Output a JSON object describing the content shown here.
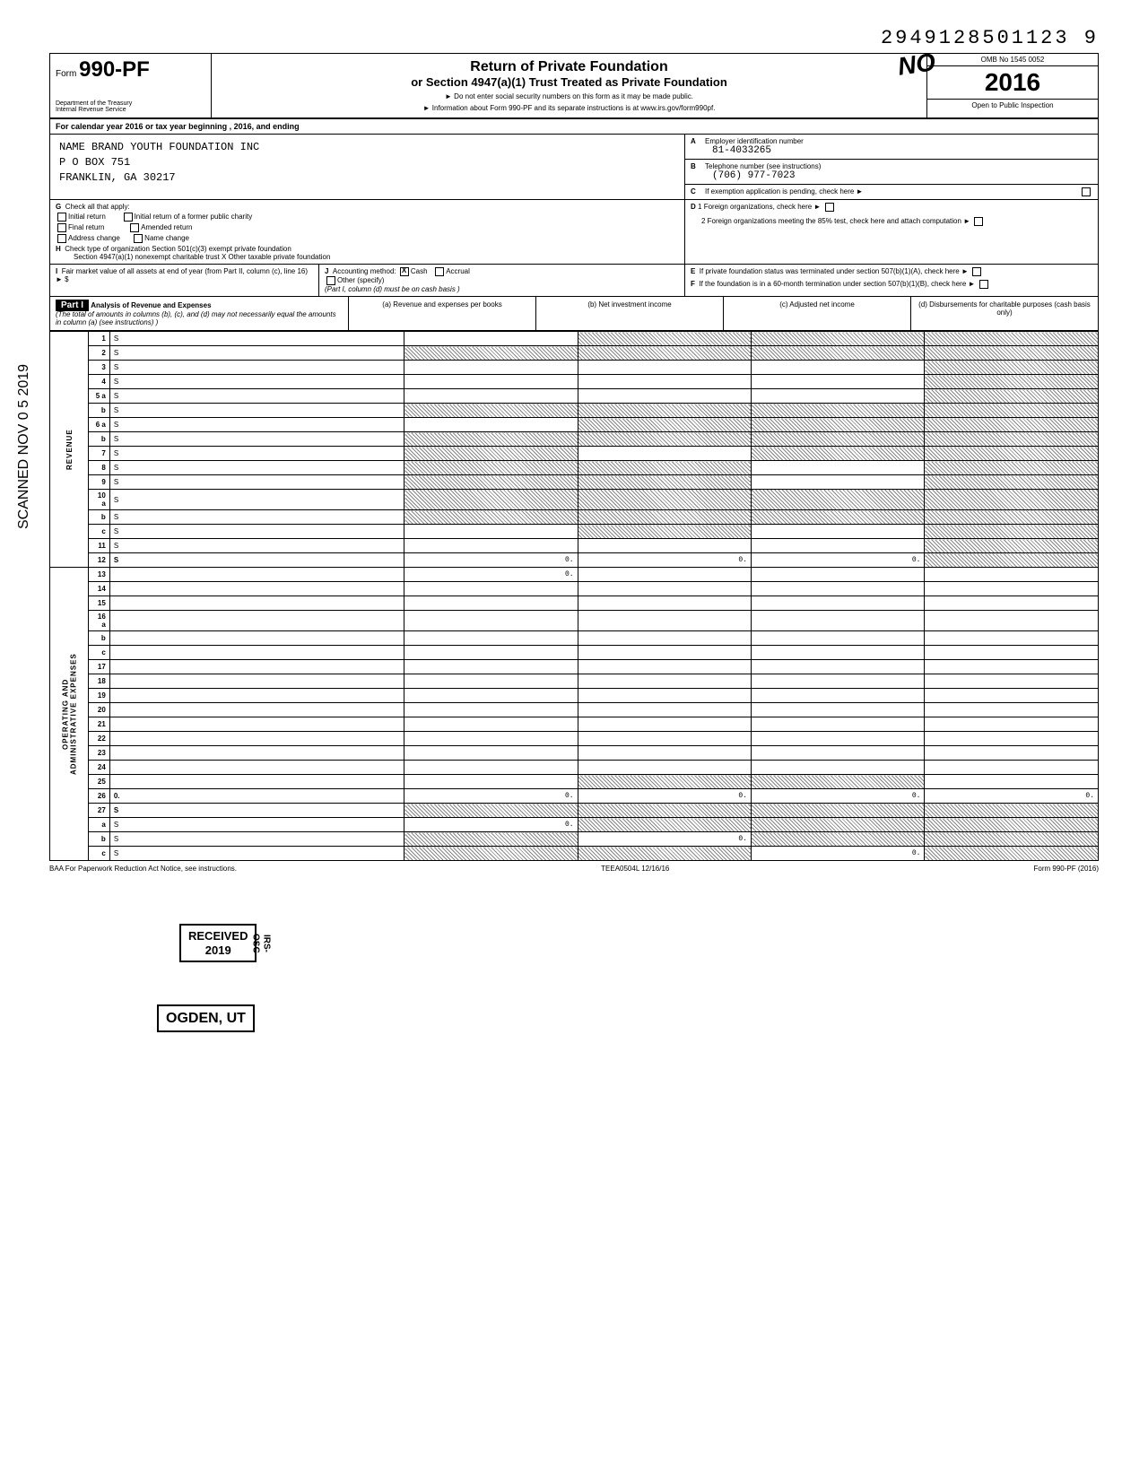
{
  "top_number": "2949128501123  9",
  "form": {
    "prefix": "Form",
    "number": "990-PF",
    "dept1": "Department of the Treasury",
    "dept2": "Internal Revenue Service"
  },
  "header": {
    "title": "Return of Private Foundation",
    "subtitle": "or Section 4947(a)(1) Trust Treated as Private Foundation",
    "line1": "► Do not enter social security numbers on this form as it may be made public.",
    "line2": "► Information about Form 990-PF and its separate instructions is at www.irs.gov/form990pf.",
    "omb": "OMB No 1545 0052",
    "year": "2016",
    "inspection": "Open to Public Inspection",
    "handwritten": "NO"
  },
  "calendar_line": "For calendar year 2016 or tax year beginning                                 , 2016, and ending",
  "org": {
    "name": "NAME BRAND YOUTH FOUNDATION INC",
    "addr1": "P O BOX 751",
    "addr2": "FRANKLIN, GA 30217"
  },
  "boxA": {
    "label": "Employer identification number",
    "value": "81-4033265"
  },
  "boxB": {
    "label": "Telephone number (see instructions)",
    "value": "(706)  977-7023"
  },
  "boxC": "If exemption application is pending, check here  ►",
  "boxG": {
    "label": "Check all that apply:",
    "opts": [
      "Initial return",
      "Final return",
      "Address change",
      "Initial return of a former public charity",
      "Amended return",
      "Name change"
    ]
  },
  "boxD": {
    "d1": "1 Foreign organizations, check here",
    "d2": "2 Foreign organizations meeting the 85% test, check here and attach computation"
  },
  "boxH": "Check type of organization        Section 501(c)(3) exempt private foundation",
  "boxH2": "Section 4947(a)(1) nonexempt charitable trust   X  Other taxable private foundation",
  "boxI": {
    "label": "Fair market value of all assets at end of year (from Part II, column (c), line 16)",
    "val": "► $"
  },
  "boxJ": {
    "label": "Accounting method:",
    "cash": "Cash",
    "accrual": "Accrual",
    "other": "Other (specify)",
    "note": "(Part I, column (d) must be on cash basis )"
  },
  "boxE": "If private foundation status was terminated under section 507(b)(1)(A), check here",
  "boxF": "If the foundation is in a 60-month termination under section 507(b)(1)(B), check here",
  "part1": {
    "tag": "Part I",
    "title": "Analysis of Revenue and Expenses",
    "note": "(The total of amounts in columns (b), (c), and (d) may not necessarily equal the amounts in column (a) (see instructions) )",
    "cols": [
      "(a) Revenue and expenses per books",
      "(b) Net investment income",
      "(c) Adjusted net income",
      "(d) Disbursements for charitable purposes (cash basis only)"
    ]
  },
  "revenue_side": "REVENUE",
  "opex_side1": "OPERATING AND",
  "opex_side2": "ADMINISTRATIVE EXPENSES",
  "rows": [
    {
      "n": "1",
      "d": "S",
      "a": "",
      "b": "S",
      "c": "S"
    },
    {
      "n": "2",
      "d": "S",
      "a": "S",
      "b": "S",
      "c": "S"
    },
    {
      "n": "3",
      "d": "S",
      "a": "",
      "b": "",
      "c": ""
    },
    {
      "n": "4",
      "d": "S",
      "a": "",
      "b": "",
      "c": ""
    },
    {
      "n": "5 a",
      "d": "S",
      "a": "",
      "b": "",
      "c": ""
    },
    {
      "n": "b",
      "d": "S",
      "a": "S",
      "b": "S",
      "c": "S"
    },
    {
      "n": "6 a",
      "d": "S",
      "a": "",
      "b": "S",
      "c": "S"
    },
    {
      "n": "b",
      "d": "S",
      "a": "S",
      "b": "S",
      "c": "S"
    },
    {
      "n": "7",
      "d": "S",
      "a": "S",
      "b": "",
      "c": "S"
    },
    {
      "n": "8",
      "d": "S",
      "a": "S",
      "b": "S",
      "c": ""
    },
    {
      "n": "9",
      "d": "S",
      "a": "S",
      "b": "S",
      "c": ""
    },
    {
      "n": "10 a",
      "d": "S",
      "a": "S",
      "b": "S",
      "c": "S"
    },
    {
      "n": "b",
      "d": "S",
      "a": "S",
      "b": "S",
      "c": "S"
    },
    {
      "n": "c",
      "d": "S",
      "a": "",
      "b": "S",
      "c": ""
    },
    {
      "n": "11",
      "d": "S",
      "a": "",
      "b": "",
      "c": ""
    },
    {
      "n": "12",
      "d": "S",
      "a": "0.",
      "b": "0.",
      "c": "0.",
      "bold": true
    },
    {
      "n": "13",
      "d": "",
      "a": "0.",
      "b": "",
      "c": ""
    },
    {
      "n": "14",
      "d": "",
      "a": "",
      "b": "",
      "c": ""
    },
    {
      "n": "15",
      "d": "",
      "a": "",
      "b": "",
      "c": ""
    },
    {
      "n": "16 a",
      "d": "",
      "a": "",
      "b": "",
      "c": ""
    },
    {
      "n": "b",
      "d": "",
      "a": "",
      "b": "",
      "c": ""
    },
    {
      "n": "c",
      "d": "",
      "a": "",
      "b": "",
      "c": ""
    },
    {
      "n": "17",
      "d": "",
      "a": "",
      "b": "",
      "c": ""
    },
    {
      "n": "18",
      "d": "",
      "a": "",
      "b": "",
      "c": ""
    },
    {
      "n": "19",
      "d": "",
      "a": "",
      "b": "",
      "c": ""
    },
    {
      "n": "20",
      "d": "",
      "a": "",
      "b": "",
      "c": ""
    },
    {
      "n": "21",
      "d": "",
      "a": "",
      "b": "",
      "c": ""
    },
    {
      "n": "22",
      "d": "",
      "a": "",
      "b": "",
      "c": ""
    },
    {
      "n": "23",
      "d": "",
      "a": "",
      "b": "",
      "c": ""
    },
    {
      "n": "24",
      "d": "",
      "a": "",
      "b": "",
      "c": "",
      "bold": true
    },
    {
      "n": "25",
      "d": "",
      "a": "",
      "b": "S",
      "c": "S"
    },
    {
      "n": "26",
      "d": "0.",
      "a": "0.",
      "b": "0.",
      "c": "0.",
      "bold": true
    },
    {
      "n": "27",
      "d": "S",
      "a": "S",
      "b": "S",
      "c": "S",
      "bold": true
    },
    {
      "n": "a",
      "d": "S",
      "a": "0.",
      "b": "S",
      "c": "S"
    },
    {
      "n": "b",
      "d": "S",
      "a": "S",
      "b": "0.",
      "c": "S"
    },
    {
      "n": "c",
      "d": "S",
      "a": "S",
      "b": "S",
      "c": "0."
    }
  ],
  "scanned_text": "SCANNED  NOV 0 5 2019",
  "stamp1": {
    "l1": "RECEIVED",
    "l2": "2019",
    "l3": "IRS-OSC"
  },
  "stamp2": "OGDEN, UT",
  "footer": {
    "left": "BAA  For Paperwork Reduction Act Notice, see instructions.",
    "mid": "TEEA0504L  12/16/16",
    "right": "Form 990-PF (2016)"
  }
}
